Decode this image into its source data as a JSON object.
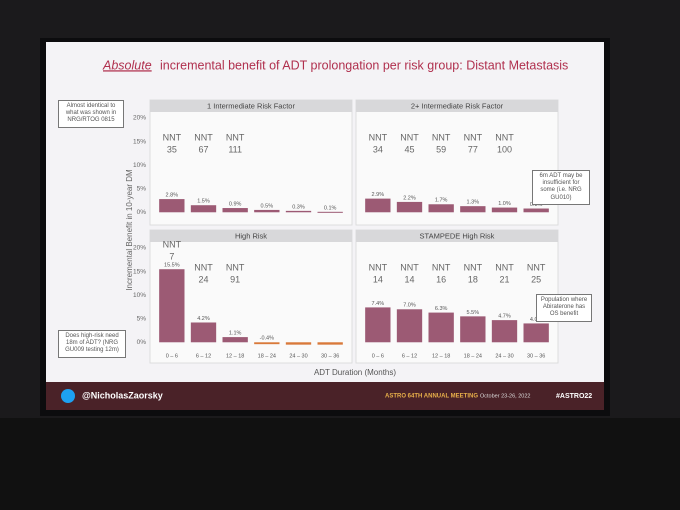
{
  "slide_title": {
    "emphasis": "Absolute",
    "rest": "incremental benefit of ADT prolongation per risk group: Distant Metastasis"
  },
  "y_axis_label": "Incremental Benefit in 10-year DM",
  "x_axis_label": "ADT Duration (Months)",
  "annotations": [
    "Almost identical to what was shown in NRG/RTOG 0815",
    "Does high-risk need 18m of ADT? (NRG GU009 testing 12m)",
    "6m ADT may be insufficient for some (i.e. NRG GU010)",
    "Population where Abiraterone has OS benefit"
  ],
  "footer": {
    "handle": "@NicholasZaorsky",
    "meeting": "ASTRO 64TH ANNUAL MEETING",
    "dates": "October 23-26, 2022",
    "hashtag": "#ASTRO22"
  },
  "chart_data": [
    {
      "type": "bar",
      "title": "1 Intermediate Risk Factor",
      "values": [
        2.8,
        1.5,
        0.9,
        0.5,
        0.3,
        0.1
      ],
      "value_labels": [
        "2.8%",
        "1.5%",
        "0.9%",
        "0.5%",
        "0.3%",
        "0.1%"
      ],
      "color": "#9c5a74",
      "nnt_label": "NNT",
      "nnt": [
        35,
        67,
        111
      ],
      "ylim": [
        -1,
        20
      ],
      "yticks": [
        {
          "value": 0,
          "label": "0%"
        },
        {
          "value": 5,
          "label": "5%"
        },
        {
          "value": 10,
          "label": "10%"
        },
        {
          "value": 15,
          "label": "15%"
        },
        {
          "value": 20,
          "label": "20%"
        }
      ]
    },
    {
      "type": "bar",
      "title": "2+ Intermediate Risk Factor",
      "values": [
        2.9,
        2.2,
        1.7,
        1.3,
        1.0,
        0.8
      ],
      "value_labels": [
        "2.9%",
        "2.2%",
        "1.7%",
        "1.3%",
        "1.0%",
        "0.8%"
      ],
      "color": "#9c5a74",
      "nnt_label": "NNT",
      "nnt": [
        34,
        45,
        59,
        77,
        100
      ],
      "ylim": [
        -1,
        20
      ]
    },
    {
      "type": "bar",
      "title": "High Risk",
      "values": [
        15.5,
        4.2,
        1.1,
        -0.4,
        -0.5,
        -0.5
      ],
      "value_labels": [
        "15.5%",
        "4.2%",
        "1.1%",
        "-0.4%",
        null,
        null
      ],
      "color": "#9c5a74",
      "negative_color": "#d9793a",
      "categories": [
        "0 – 6",
        "6 – 12",
        "12 – 18",
        "18 – 24",
        "24 – 30",
        "30 – 36"
      ],
      "nnt_label": "NNT",
      "nnt": [
        7,
        24,
        91
      ],
      "ylim": [
        -1,
        20
      ],
      "yticks": [
        {
          "value": 0,
          "label": "0%"
        },
        {
          "value": 5,
          "label": "5%"
        },
        {
          "value": 10,
          "label": "10%"
        },
        {
          "value": 15,
          "label": "15%"
        },
        {
          "value": 20,
          "label": "20%"
        }
      ]
    },
    {
      "type": "bar",
      "title": "STAMPEDE High Risk",
      "values": [
        7.4,
        7.0,
        6.3,
        5.5,
        4.7,
        4.0
      ],
      "value_labels": [
        "7.4%",
        "7.0%",
        "6.3%",
        "5.5%",
        "4.7%",
        "4.0%"
      ],
      "color": "#9c5a74",
      "categories": [
        "0 – 6",
        "6 – 12",
        "12 – 18",
        "18 – 24",
        "24 – 30",
        "30 – 36"
      ],
      "nnt_label": "NNT",
      "nnt": [
        14,
        14,
        16,
        18,
        21,
        25
      ],
      "ylim": [
        -1,
        20
      ]
    }
  ]
}
